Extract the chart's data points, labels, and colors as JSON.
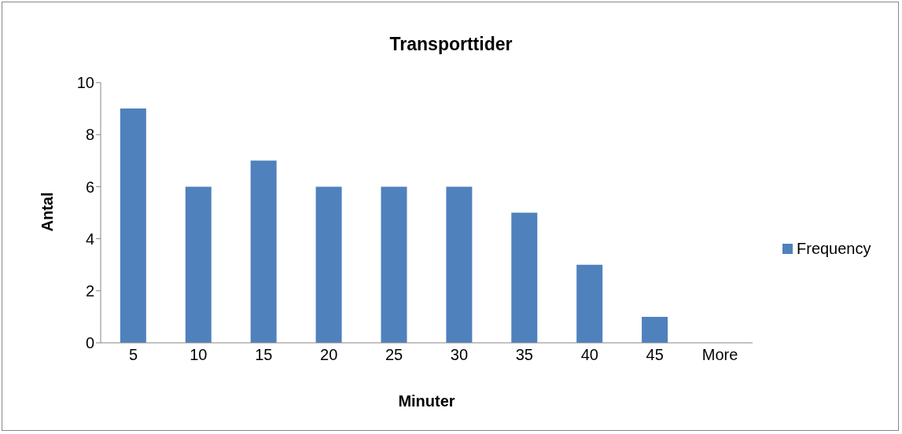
{
  "chart_data": {
    "type": "bar",
    "title": "Transporttider",
    "xlabel": "Minuter",
    "ylabel": "Antal",
    "categories": [
      "5",
      "10",
      "15",
      "20",
      "25",
      "30",
      "35",
      "40",
      "45",
      "More"
    ],
    "series": [
      {
        "name": "Frequency",
        "color": "#4f81bd",
        "values": [
          9,
          6,
          7,
          6,
          6,
          6,
          5,
          3,
          1,
          0
        ]
      }
    ],
    "ylim": [
      0,
      10
    ],
    "yticks": [
      0,
      2,
      4,
      6,
      8,
      10
    ],
    "grid": false,
    "legend": "right"
  }
}
